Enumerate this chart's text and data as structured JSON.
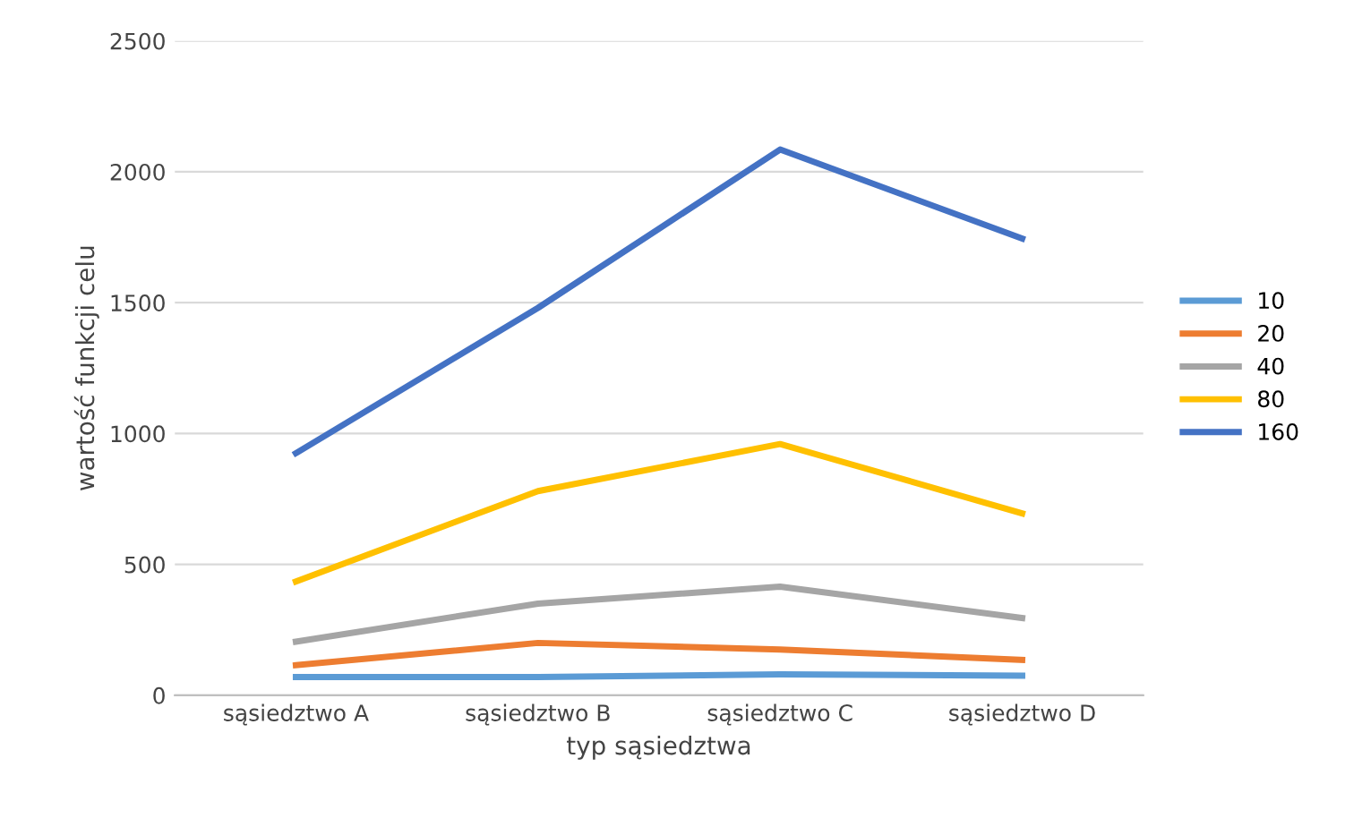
{
  "chart_data": {
    "type": "line",
    "xlabel": "typ sąsiedztwa",
    "ylabel": "wartość funkcji celu",
    "categories": [
      "sąsiedztwo A",
      "sąsiedztwo B",
      "sąsiedztwo C",
      "sąsiedztwo D"
    ],
    "series": [
      {
        "name": "10",
        "color": "#5b9bd5",
        "values": [
          70,
          70,
          80,
          75
        ]
      },
      {
        "name": "20",
        "color": "#ed7d31",
        "values": [
          115,
          200,
          175,
          135
        ]
      },
      {
        "name": "40",
        "color": "#a5a5a5",
        "values": [
          205,
          350,
          415,
          295
        ]
      },
      {
        "name": "80",
        "color": "#ffc000",
        "values": [
          435,
          780,
          960,
          695
        ]
      },
      {
        "name": "160",
        "color": "#4472c4",
        "values": [
          925,
          1480,
          2085,
          1745
        ]
      }
    ],
    "ylim": [
      0,
      2500
    ],
    "yticks": [
      0,
      500,
      1000,
      1500,
      2000,
      2500
    ],
    "grid": "y",
    "legend": "right"
  }
}
